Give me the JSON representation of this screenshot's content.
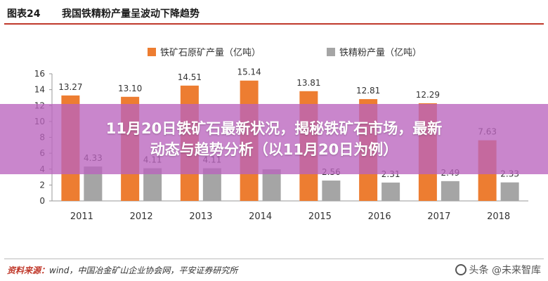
{
  "header": {
    "figure_no": "图表24",
    "title": "我国铁精粉产量呈波动下降趋势"
  },
  "chart_data": {
    "type": "bar",
    "categories": [
      "2011",
      "2012",
      "2013",
      "2014",
      "2015",
      "2016",
      "2017",
      "2018"
    ],
    "series": [
      {
        "name": "铁矿石原矿产量（亿吨）",
        "color": "#ed7d31",
        "values": [
          13.27,
          13.1,
          14.51,
          15.14,
          13.81,
          12.81,
          12.29,
          7.63
        ]
      },
      {
        "name": "铁精粉产量（亿吨）",
        "color": "#a5a5a5",
        "values": [
          4.33,
          4.11,
          4.11,
          3.98,
          2.56,
          2.31,
          2.49,
          2.33
        ]
      }
    ],
    "value_labels": [
      [
        "13.27",
        "13.10",
        "14.51",
        "15.14",
        "13.81",
        "12.81",
        "12.29",
        "7.63"
      ],
      [
        "4.33",
        "4.11",
        "4.11",
        "",
        "2.56",
        "2.31",
        "2.49",
        "2.33"
      ]
    ],
    "ylim": [
      0,
      16
    ],
    "yticks": [
      "0",
      "2",
      "4",
      "6",
      "8",
      "10",
      "12",
      "14",
      "16"
    ],
    "legend_position": "top-center",
    "grid": false
  },
  "overlay": {
    "line1": "11月20日铁矿石最新状况，揭秘铁矿石市场，最新",
    "line2": "动态与趋势分析（以11月20日为例）"
  },
  "footer": {
    "source_label": "资料来源：",
    "source_text": "wind，中国冶金矿山企业协会网，平安证券研究所",
    "watermark": "头条 @未来智库"
  }
}
